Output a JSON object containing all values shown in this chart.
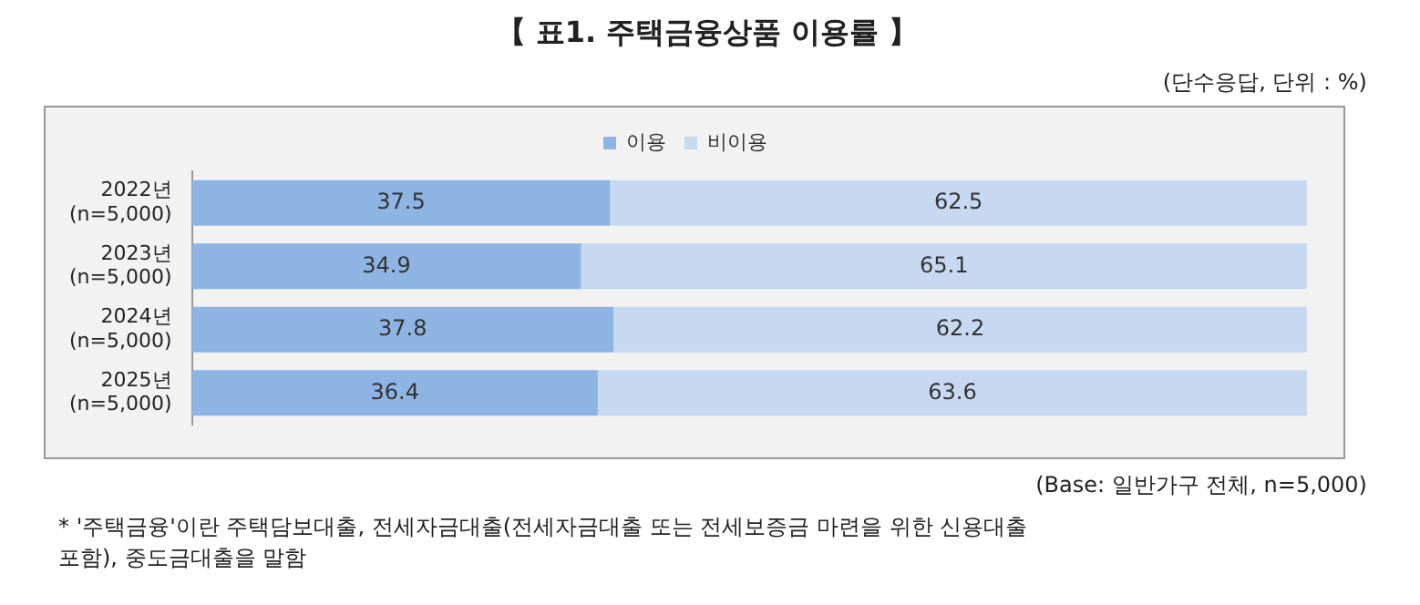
{
  "chart_data": {
    "type": "bar",
    "orientation": "horizontal",
    "stacked": true,
    "title": "【 표1. 주택금융상품 이용률 】",
    "subtitle": "(단수응답, 단위 : %)",
    "categories": [
      "2022년\n(n=5,000)",
      "2023년\n(n=5,000)",
      "2024년\n(n=5,000)",
      "2025년\n(n=5,000)"
    ],
    "series": [
      {
        "name": "이용",
        "color": "#8db4e2",
        "values": [
          37.5,
          34.9,
          37.8,
          36.4
        ]
      },
      {
        "name": "비이용",
        "color": "#c6d9f0",
        "values": [
          62.5,
          65.1,
          62.2,
          63.6
        ]
      }
    ],
    "xlim": [
      0,
      100
    ],
    "tick_labels": "y",
    "data_labels": true,
    "legend": "top",
    "grid": false,
    "annotations": [
      "(Base: 일반가구 전체, n=5,000)",
      "* '주택금융'이란 주택담보대출, 전세자금대출(전세자금대출 또는 전세보증금 마련을 위한 신용대출 포함), 중도금대출을 말함"
    ]
  }
}
